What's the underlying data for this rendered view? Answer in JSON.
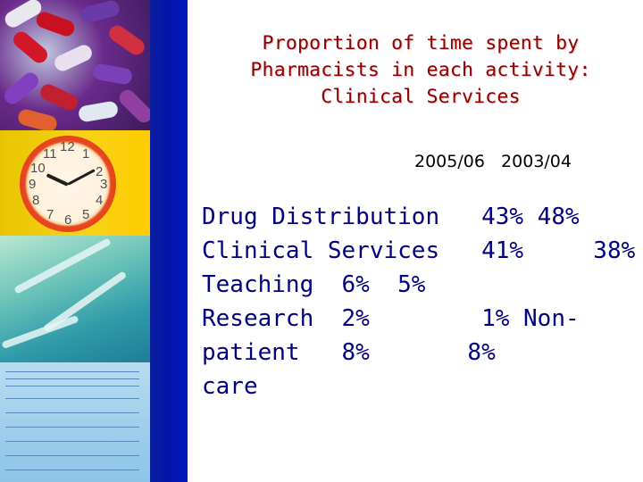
{
  "slide": {
    "title_lines": [
      "Proportion of time spent by",
      "Pharmacists in each activity:",
      "Clinical Services"
    ],
    "years_header": "2005/06   2003/04",
    "body_lines": [
      "Drug Distribution   43% 48%",
      "Clinical Services   41%     38%",
      "Teaching  6%  5%",
      "Research  2%        1% Non-",
      "patient   8%       8%",
      "care"
    ]
  },
  "clock_numbers": [
    "12",
    "1",
    "2",
    "3",
    "4",
    "5",
    "6",
    "7",
    "8",
    "9",
    "10",
    "11"
  ],
  "colors": {
    "title": "#8b0000",
    "body_text": "#000080",
    "band": "#0414a8"
  }
}
